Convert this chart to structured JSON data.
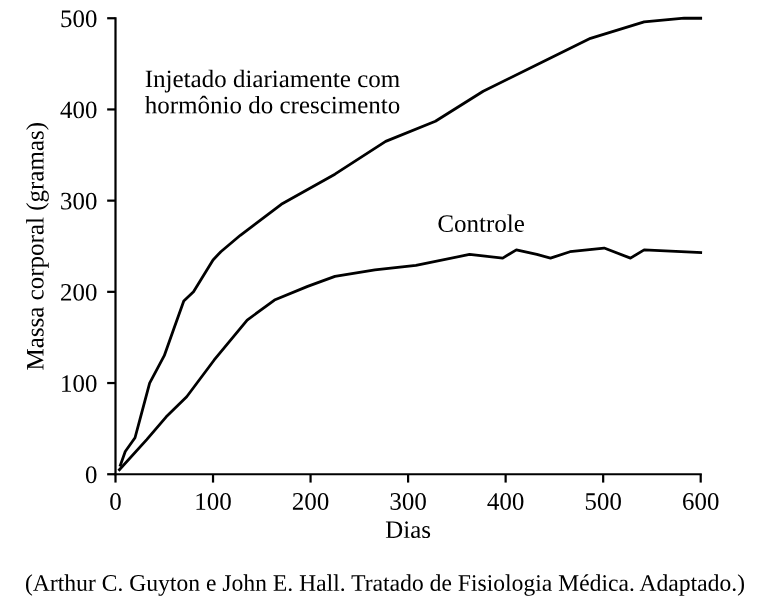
{
  "chart_data": {
    "type": "line",
    "xlabel": "Dias",
    "ylabel": "Massa corporal (gramas)",
    "xlim": [
      0,
      600
    ],
    "ylim": [
      0,
      500
    ],
    "xticks": [
      0,
      100,
      200,
      300,
      400,
      500,
      600
    ],
    "yticks": [
      0,
      100,
      200,
      300,
      400,
      500
    ],
    "grid": false,
    "legend": false,
    "marker": "none",
    "line_style": "solid",
    "annotations": [
      "(Arthur C. Guyton e John E. Hall. Tratado de Fisiologia Médica. Adaptado.)"
    ],
    "series": [
      {
        "name": "Injetado diariamente com\nhormônio do crescimento",
        "color": "#000000",
        "x": [
          5,
          10,
          20,
          25,
          35,
          50,
          60,
          70,
          80,
          100,
          108,
          128,
          170,
          225,
          277,
          328,
          377,
          432,
          487,
          542,
          583,
          600
        ],
        "values": [
          10,
          25,
          40,
          60,
          100,
          130,
          160,
          190,
          200,
          235,
          244,
          262,
          296,
          329,
          365,
          387,
          420,
          449,
          478,
          496,
          500,
          500
        ]
      },
      {
        "name": "Controle",
        "color": "#000000",
        "x": [
          4,
          32,
          52,
          73,
          101,
          135,
          163,
          197,
          225,
          266,
          308,
          363,
          397,
          411,
          432,
          446,
          466,
          501,
          528,
          542,
          600
        ],
        "values": [
          5,
          38,
          63,
          85,
          125,
          169,
          191,
          206,
          217,
          224,
          229,
          241,
          237,
          246,
          241,
          237,
          244,
          248,
          237,
          246,
          243
        ]
      }
    ]
  }
}
